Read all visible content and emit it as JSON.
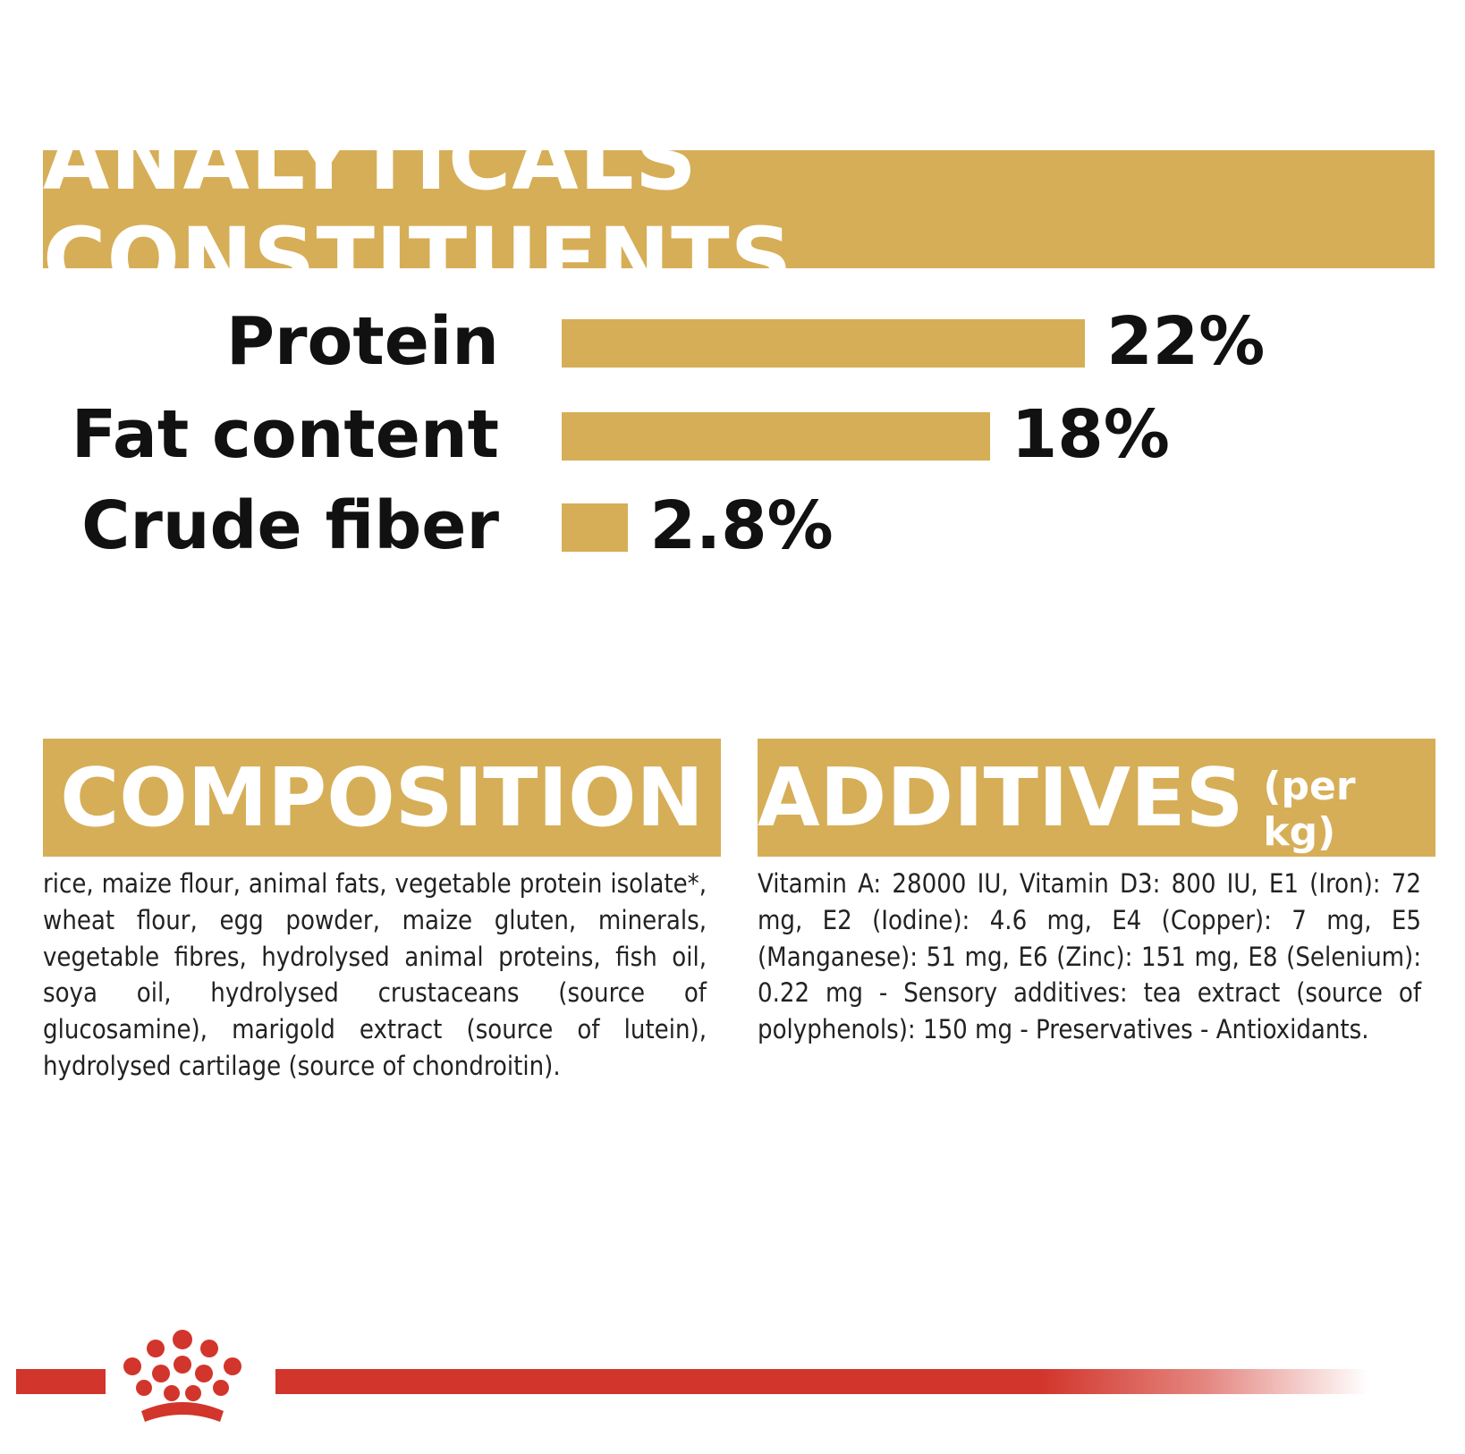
{
  "colors": {
    "gold": "#d6ae57",
    "brand_red": "#d2352b"
  },
  "headings": {
    "analytical": "ANALYTICALS CONSTITUENTS",
    "composition": "COMPOSITION",
    "additives": "ADDITIVES",
    "additives_unit": "(per kg)"
  },
  "chart_data": {
    "type": "bar",
    "orientation": "horizontal",
    "title": "ANALYTICALS CONSTITUENTS",
    "categories": [
      "Protein",
      "Fat content",
      "Crude fiber"
    ],
    "values": [
      22,
      18,
      2.8
    ],
    "value_labels": [
      "22%",
      "18%",
      "2.8%"
    ],
    "unit": "%",
    "grid": false
  },
  "composition_text": "rice, maize flour, animal fats, vegetable protein isolate*, wheat flour, egg powder, maize gluten, minerals, vegetable fibres, hydrolysed animal proteins, fish oil, soya oil, hydrolysed crustaceans (source of glucosamine), marigold extract (source of lutein), hydrolysed cartilage (source of chondroitin).",
  "additives_text": "Vitamin A: 28000 IU, Vitamin D3: 800 IU, E1 (Iron): 72 mg, E2 (Iodine): 4.6 mg, E4 (Copper): 7 mg, E5 (Manganese): 51 mg, E6 (Zinc): 151 mg, E8 (Selenium): 0.22 mg - Sensory additives: tea extract (source of polyphenols): 150 mg - Preservatives - Antioxidants."
}
